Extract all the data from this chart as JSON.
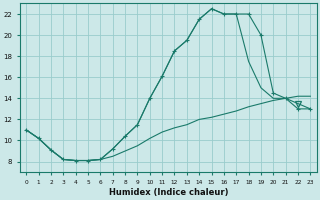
{
  "xlabel": "Humidex (Indice chaleur)",
  "xlim": [
    -0.5,
    23.5
  ],
  "ylim": [
    7,
    23
  ],
  "yticks": [
    8,
    10,
    12,
    14,
    16,
    18,
    20,
    22
  ],
  "xticks": [
    0,
    1,
    2,
    3,
    4,
    5,
    6,
    7,
    8,
    9,
    10,
    11,
    12,
    13,
    14,
    15,
    16,
    17,
    18,
    19,
    20,
    21,
    22,
    23
  ],
  "bg_color": "#cce8e8",
  "grid_color": "#99cccc",
  "line_color": "#1a7a6a",
  "main_x": [
    0,
    1,
    2,
    3,
    4,
    5,
    6,
    7,
    8,
    9,
    10,
    11,
    12,
    13,
    14,
    15,
    16,
    17,
    18,
    19,
    20,
    21,
    22,
    23
  ],
  "main_y": [
    11,
    10.2,
    9.1,
    8.2,
    8.1,
    8.1,
    8.2,
    9.2,
    10.4,
    11.5,
    14.0,
    16.1,
    18.5,
    19.5,
    21.5,
    22.5,
    22.0,
    22.0,
    22.0,
    20.0,
    14.5,
    14.0,
    13.0,
    13.0
  ],
  "line2_x": [
    0,
    1,
    2,
    3,
    4,
    5,
    6,
    7,
    8,
    9,
    10,
    11,
    12,
    13,
    14,
    15,
    16,
    17,
    18,
    19,
    20,
    21,
    22,
    23
  ],
  "line2_y": [
    11,
    10.2,
    9.1,
    8.2,
    8.1,
    8.1,
    8.2,
    9.2,
    10.4,
    11.5,
    14.0,
    16.1,
    18.5,
    19.5,
    21.5,
    22.5,
    22.0,
    22.0,
    17.5,
    15.0,
    14.0,
    14.0,
    13.5,
    13.0
  ],
  "line3_x": [
    0,
    1,
    2,
    3,
    4,
    5,
    6,
    7,
    8,
    9,
    10,
    11,
    12,
    13,
    14,
    15,
    16,
    17,
    18,
    19,
    20,
    21,
    22,
    23
  ],
  "line3_y": [
    11,
    10.2,
    9.1,
    8.2,
    8.1,
    8.1,
    8.2,
    8.5,
    9.0,
    9.5,
    10.2,
    10.8,
    11.2,
    11.5,
    12.0,
    12.2,
    12.5,
    12.8,
    13.2,
    13.5,
    13.8,
    14.0,
    14.2,
    14.2
  ],
  "tri_x": 22,
  "tri_y": 13.5
}
